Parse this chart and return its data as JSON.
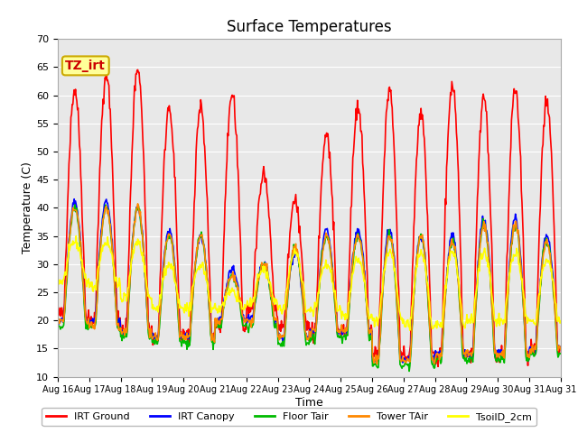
{
  "title": "Surface Temperatures",
  "xlabel": "Time",
  "ylabel": "Temperature (C)",
  "annotation_text": "TZ_irt",
  "annotation_bg": "#FFFF99",
  "annotation_border": "#CCAA00",
  "annotation_text_color": "#CC0000",
  "ylim": [
    10,
    70
  ],
  "yticks": [
    10,
    15,
    20,
    25,
    30,
    35,
    40,
    45,
    50,
    55,
    60,
    65,
    70
  ],
  "x_labels": [
    "Aug 16",
    "Aug 17",
    "Aug 18",
    "Aug 19",
    "Aug 20",
    "Aug 21",
    "Aug 22",
    "Aug 23",
    "Aug 24",
    "Aug 25",
    "Aug 26",
    "Aug 27",
    "Aug 28",
    "Aug 29",
    "Aug 30",
    "Aug 31"
  ],
  "series": {
    "IRT Ground": {
      "color": "#FF0000",
      "linewidth": 1.2
    },
    "IRT Canopy": {
      "color": "#0000FF",
      "linewidth": 1.2
    },
    "Floor Tair": {
      "color": "#00BB00",
      "linewidth": 1.2
    },
    "Tower TAir": {
      "color": "#FF8800",
      "linewidth": 1.2
    },
    "TsoilD_2cm": {
      "color": "#FFFF00",
      "linewidth": 1.2
    }
  },
  "plot_bg": "#E8E8E8",
  "grid_color": "#FFFFFF",
  "title_fontsize": 12,
  "n_points_per_day": 48,
  "ground_peaks": [
    61,
    64,
    65,
    58,
    58,
    60,
    46,
    41,
    53,
    58,
    61,
    57,
    62,
    60,
    61,
    59
  ],
  "ground_min": [
    21,
    20,
    19,
    17,
    17,
    19,
    22,
    19,
    18,
    18,
    14,
    14,
    14,
    14,
    14,
    15
  ],
  "canopy_peaks": [
    41,
    41,
    40,
    36,
    35,
    29,
    30,
    32,
    36,
    36,
    36,
    35,
    35,
    38,
    38,
    35
  ],
  "canopy_min": [
    20,
    20,
    18,
    17,
    17,
    20,
    20,
    17,
    18,
    18,
    13,
    13,
    14,
    14,
    14,
    15
  ],
  "floor_peaks": [
    40,
    40,
    40,
    35,
    35,
    28,
    30,
    33,
    35,
    35,
    35,
    35,
    34,
    37,
    37,
    34
  ],
  "floor_min": [
    19,
    19,
    17,
    16,
    16,
    19,
    19,
    16,
    17,
    17,
    12,
    12,
    13,
    13,
    13,
    14
  ],
  "tower_peaks": [
    40,
    40,
    40,
    35,
    35,
    28,
    30,
    33,
    35,
    35,
    35,
    35,
    34,
    37,
    37,
    34
  ],
  "tower_min": [
    20,
    19,
    18,
    17,
    17,
    20,
    20,
    17,
    18,
    18,
    13,
    13,
    14,
    14,
    14,
    15
  ],
  "tsoil_peaks": [
    34,
    34,
    34,
    30,
    30,
    25,
    29,
    32,
    30,
    31,
    32,
    32,
    32,
    32,
    32,
    31
  ],
  "tsoil_min": [
    27,
    26,
    24,
    22,
    22,
    22,
    23,
    22,
    22,
    21,
    20,
    19,
    19,
    20,
    20,
    20
  ]
}
